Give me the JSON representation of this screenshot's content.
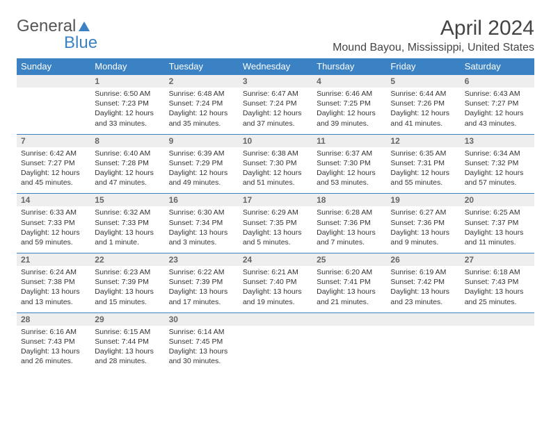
{
  "logo": {
    "part1": "General",
    "part2": "Blue"
  },
  "title": "April 2024",
  "location": "Mound Bayou, Mississippi, United States",
  "colors": {
    "header_bg": "#3b82c4",
    "header_text": "#ffffff",
    "date_bg": "#eeeeee",
    "date_text": "#666666",
    "rule": "#3b82c4"
  },
  "day_names": [
    "Sunday",
    "Monday",
    "Tuesday",
    "Wednesday",
    "Thursday",
    "Friday",
    "Saturday"
  ],
  "weeks": [
    {
      "dates": [
        "",
        "1",
        "2",
        "3",
        "4",
        "5",
        "6"
      ],
      "details": [
        {},
        {
          "sunrise": "Sunrise: 6:50 AM",
          "sunset": "Sunset: 7:23 PM",
          "daylight": "Daylight: 12 hours and 33 minutes."
        },
        {
          "sunrise": "Sunrise: 6:48 AM",
          "sunset": "Sunset: 7:24 PM",
          "daylight": "Daylight: 12 hours and 35 minutes."
        },
        {
          "sunrise": "Sunrise: 6:47 AM",
          "sunset": "Sunset: 7:24 PM",
          "daylight": "Daylight: 12 hours and 37 minutes."
        },
        {
          "sunrise": "Sunrise: 6:46 AM",
          "sunset": "Sunset: 7:25 PM",
          "daylight": "Daylight: 12 hours and 39 minutes."
        },
        {
          "sunrise": "Sunrise: 6:44 AM",
          "sunset": "Sunset: 7:26 PM",
          "daylight": "Daylight: 12 hours and 41 minutes."
        },
        {
          "sunrise": "Sunrise: 6:43 AM",
          "sunset": "Sunset: 7:27 PM",
          "daylight": "Daylight: 12 hours and 43 minutes."
        }
      ]
    },
    {
      "dates": [
        "7",
        "8",
        "9",
        "10",
        "11",
        "12",
        "13"
      ],
      "details": [
        {
          "sunrise": "Sunrise: 6:42 AM",
          "sunset": "Sunset: 7:27 PM",
          "daylight": "Daylight: 12 hours and 45 minutes."
        },
        {
          "sunrise": "Sunrise: 6:40 AM",
          "sunset": "Sunset: 7:28 PM",
          "daylight": "Daylight: 12 hours and 47 minutes."
        },
        {
          "sunrise": "Sunrise: 6:39 AM",
          "sunset": "Sunset: 7:29 PM",
          "daylight": "Daylight: 12 hours and 49 minutes."
        },
        {
          "sunrise": "Sunrise: 6:38 AM",
          "sunset": "Sunset: 7:30 PM",
          "daylight": "Daylight: 12 hours and 51 minutes."
        },
        {
          "sunrise": "Sunrise: 6:37 AM",
          "sunset": "Sunset: 7:30 PM",
          "daylight": "Daylight: 12 hours and 53 minutes."
        },
        {
          "sunrise": "Sunrise: 6:35 AM",
          "sunset": "Sunset: 7:31 PM",
          "daylight": "Daylight: 12 hours and 55 minutes."
        },
        {
          "sunrise": "Sunrise: 6:34 AM",
          "sunset": "Sunset: 7:32 PM",
          "daylight": "Daylight: 12 hours and 57 minutes."
        }
      ]
    },
    {
      "dates": [
        "14",
        "15",
        "16",
        "17",
        "18",
        "19",
        "20"
      ],
      "details": [
        {
          "sunrise": "Sunrise: 6:33 AM",
          "sunset": "Sunset: 7:33 PM",
          "daylight": "Daylight: 12 hours and 59 minutes."
        },
        {
          "sunrise": "Sunrise: 6:32 AM",
          "sunset": "Sunset: 7:33 PM",
          "daylight": "Daylight: 13 hours and 1 minute."
        },
        {
          "sunrise": "Sunrise: 6:30 AM",
          "sunset": "Sunset: 7:34 PM",
          "daylight": "Daylight: 13 hours and 3 minutes."
        },
        {
          "sunrise": "Sunrise: 6:29 AM",
          "sunset": "Sunset: 7:35 PM",
          "daylight": "Daylight: 13 hours and 5 minutes."
        },
        {
          "sunrise": "Sunrise: 6:28 AM",
          "sunset": "Sunset: 7:36 PM",
          "daylight": "Daylight: 13 hours and 7 minutes."
        },
        {
          "sunrise": "Sunrise: 6:27 AM",
          "sunset": "Sunset: 7:36 PM",
          "daylight": "Daylight: 13 hours and 9 minutes."
        },
        {
          "sunrise": "Sunrise: 6:25 AM",
          "sunset": "Sunset: 7:37 PM",
          "daylight": "Daylight: 13 hours and 11 minutes."
        }
      ]
    },
    {
      "dates": [
        "21",
        "22",
        "23",
        "24",
        "25",
        "26",
        "27"
      ],
      "details": [
        {
          "sunrise": "Sunrise: 6:24 AM",
          "sunset": "Sunset: 7:38 PM",
          "daylight": "Daylight: 13 hours and 13 minutes."
        },
        {
          "sunrise": "Sunrise: 6:23 AM",
          "sunset": "Sunset: 7:39 PM",
          "daylight": "Daylight: 13 hours and 15 minutes."
        },
        {
          "sunrise": "Sunrise: 6:22 AM",
          "sunset": "Sunset: 7:39 PM",
          "daylight": "Daylight: 13 hours and 17 minutes."
        },
        {
          "sunrise": "Sunrise: 6:21 AM",
          "sunset": "Sunset: 7:40 PM",
          "daylight": "Daylight: 13 hours and 19 minutes."
        },
        {
          "sunrise": "Sunrise: 6:20 AM",
          "sunset": "Sunset: 7:41 PM",
          "daylight": "Daylight: 13 hours and 21 minutes."
        },
        {
          "sunrise": "Sunrise: 6:19 AM",
          "sunset": "Sunset: 7:42 PM",
          "daylight": "Daylight: 13 hours and 23 minutes."
        },
        {
          "sunrise": "Sunrise: 6:18 AM",
          "sunset": "Sunset: 7:43 PM",
          "daylight": "Daylight: 13 hours and 25 minutes."
        }
      ]
    },
    {
      "dates": [
        "28",
        "29",
        "30",
        "",
        "",
        "",
        ""
      ],
      "details": [
        {
          "sunrise": "Sunrise: 6:16 AM",
          "sunset": "Sunset: 7:43 PM",
          "daylight": "Daylight: 13 hours and 26 minutes."
        },
        {
          "sunrise": "Sunrise: 6:15 AM",
          "sunset": "Sunset: 7:44 PM",
          "daylight": "Daylight: 13 hours and 28 minutes."
        },
        {
          "sunrise": "Sunrise: 6:14 AM",
          "sunset": "Sunset: 7:45 PM",
          "daylight": "Daylight: 13 hours and 30 minutes."
        },
        {},
        {},
        {},
        {}
      ]
    }
  ]
}
